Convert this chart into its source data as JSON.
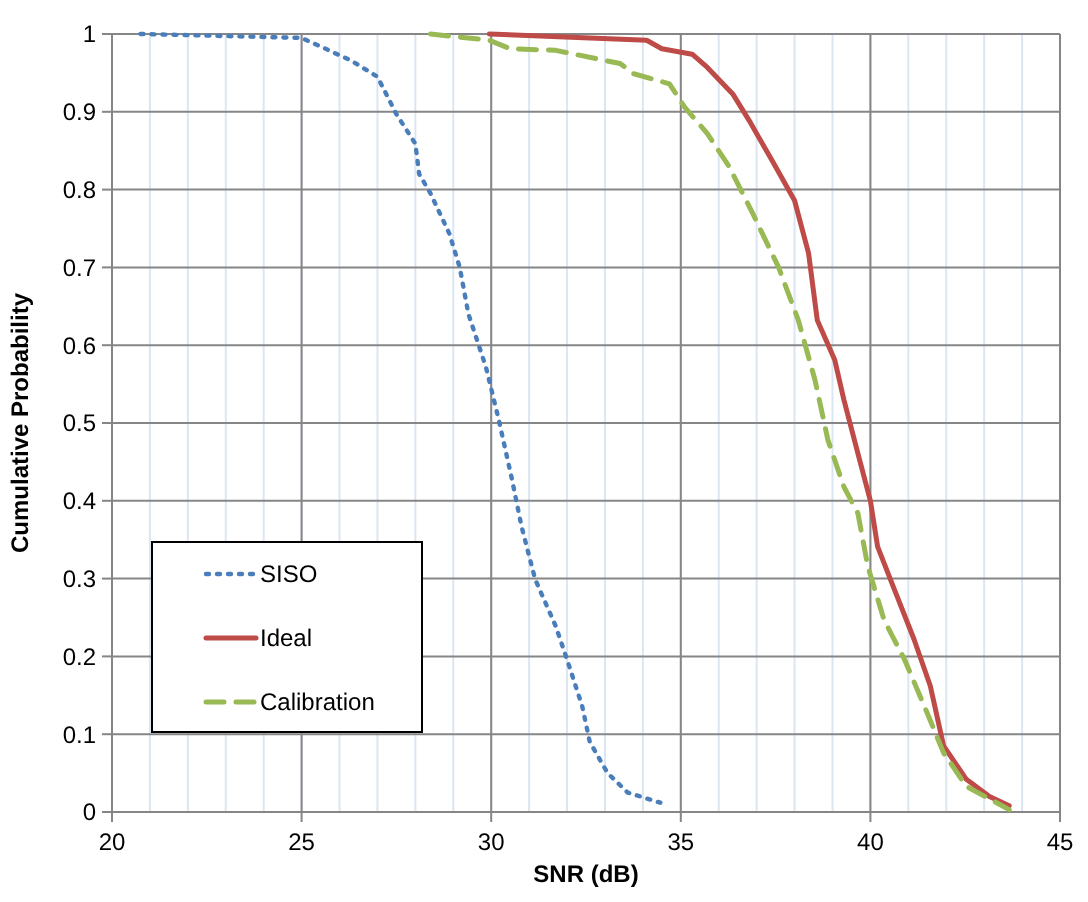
{
  "chart_data": {
    "type": "line",
    "xlabel": "SNR (dB)",
    "ylabel": "Cumulative Probability",
    "xlim": [
      20,
      45
    ],
    "xticks": [
      20,
      25,
      30,
      35,
      40,
      45
    ],
    "ylim": [
      0,
      1
    ],
    "yticks": [
      0,
      0.1,
      0.2,
      0.3,
      0.4,
      0.5,
      0.6,
      0.7,
      0.8,
      0.9,
      1
    ],
    "grid": true,
    "legend": "bottom left",
    "series": [
      {
        "name": "SISO",
        "color": "#4a7ebb",
        "line_style": "dotted",
        "x": [
          20.75,
          25,
          26.3,
          27.0,
          27.5,
          28.0,
          28.1,
          28.4,
          28.9,
          29.17,
          29.4,
          29.86,
          30.2,
          30.55,
          30.8,
          31.16,
          31.7,
          32.0,
          32.4,
          32.6,
          33.07,
          33.6,
          34.46
        ],
        "values": [
          1.0,
          0.995,
          0.966,
          0.945,
          0.897,
          0.859,
          0.82,
          0.795,
          0.743,
          0.7,
          0.64,
          0.572,
          0.504,
          0.427,
          0.367,
          0.299,
          0.239,
          0.196,
          0.136,
          0.09,
          0.05,
          0.025,
          0.012
        ]
      },
      {
        "name": "Ideal",
        "color": "#be4b48",
        "line_style": "solid",
        "x": [
          29.95,
          34.1,
          34.5,
          35.3,
          35.7,
          36.37,
          36.8,
          37.4,
          38.0,
          38.37,
          38.6,
          39.06,
          39.3,
          39.67,
          40.0,
          40.19,
          40.6,
          41.15,
          41.58,
          41.93,
          42.53,
          43.14,
          43.66
        ],
        "values": [
          1.0,
          0.992,
          0.981,
          0.974,
          0.957,
          0.923,
          0.889,
          0.838,
          0.786,
          0.718,
          0.632,
          0.581,
          0.53,
          0.461,
          0.4,
          0.341,
          0.29,
          0.222,
          0.162,
          0.085,
          0.042,
          0.02,
          0.008
        ]
      },
      {
        "name": "Calibration",
        "color": "#98b954",
        "line_style": "dashed",
        "x": [
          28.4,
          29.95,
          30.5,
          31.7,
          33.4,
          33.75,
          34.7,
          35.1,
          35.7,
          36.28,
          36.9,
          37.58,
          38.1,
          38.54,
          38.88,
          39.3,
          39.67,
          39.93,
          40.36,
          40.9,
          41.5,
          41.93,
          42.53,
          43.66
        ],
        "values": [
          1.0,
          0.992,
          0.981,
          0.979,
          0.962,
          0.949,
          0.936,
          0.906,
          0.872,
          0.829,
          0.769,
          0.7,
          0.632,
          0.555,
          0.478,
          0.418,
          0.384,
          0.316,
          0.247,
          0.196,
          0.127,
          0.076,
          0.033,
          0.003
        ]
      }
    ]
  }
}
